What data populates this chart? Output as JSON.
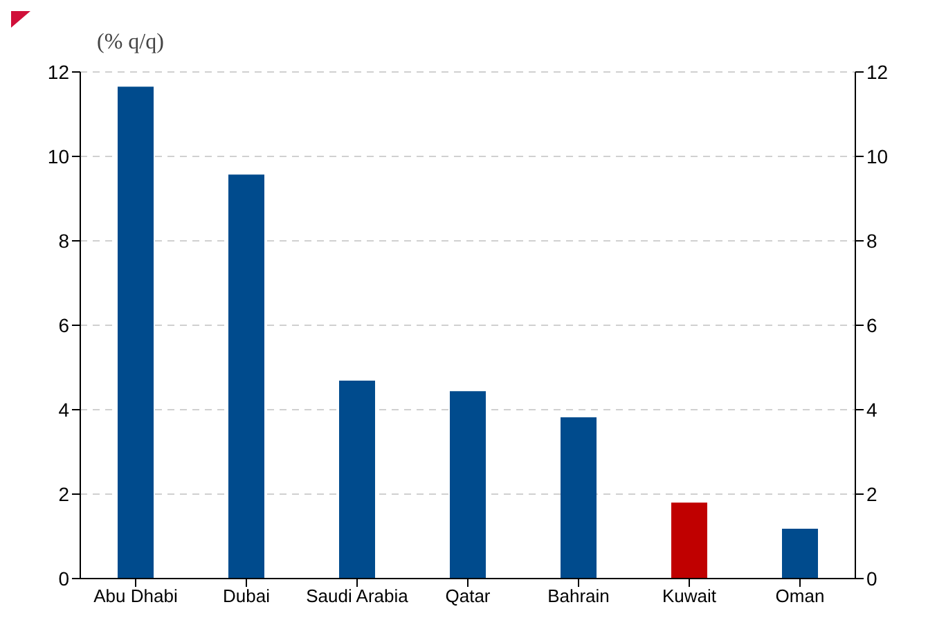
{
  "chart_data": {
    "type": "bar",
    "ylabel": "(% q/q)",
    "categories": [
      "Abu Dhabi",
      "Dubai",
      "Saudi Arabia",
      "Qatar",
      "Bahrain",
      "Kuwait",
      "Oman"
    ],
    "values": [
      11.65,
      9.57,
      4.69,
      4.44,
      3.82,
      1.8,
      1.18
    ],
    "colors": [
      "#004b8d",
      "#004b8d",
      "#004b8d",
      "#004b8d",
      "#004b8d",
      "#c00000",
      "#004b8d"
    ],
    "ylim": [
      0,
      12
    ],
    "yticks": [
      0,
      2,
      4,
      6,
      8,
      10,
      12
    ],
    "y2lim": [
      0,
      12
    ],
    "y2ticks": [
      0,
      2,
      4,
      6,
      8,
      10,
      12
    ],
    "grid": "y"
  }
}
